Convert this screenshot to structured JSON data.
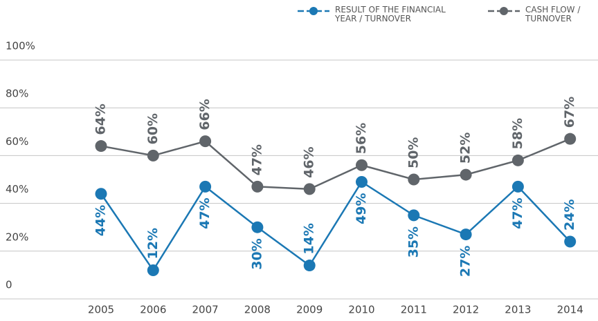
{
  "chart_data": {
    "type": "line",
    "categories": [
      "2005",
      "2006",
      "2007",
      "2008",
      "2009",
      "2010",
      "2011",
      "2012",
      "2013",
      "2014"
    ],
    "series": [
      {
        "name": "RESULT OF THE FINANCIAL YEAR / TURNOVER",
        "color": "#1b78b4",
        "values": [
          44,
          12,
          47,
          30,
          14,
          49,
          35,
          27,
          47,
          24
        ],
        "value_labels": [
          "44%",
          "12%",
          "47%",
          "30%",
          "14%",
          "49%",
          "35%",
          "27%",
          "47%",
          "24%"
        ]
      },
      {
        "name": "CASH FLOW / TURNOVER",
        "color": "#60656a",
        "values": [
          64,
          60,
          66,
          47,
          46,
          56,
          50,
          52,
          58,
          67
        ],
        "value_labels": [
          "64%",
          "60%",
          "66%",
          "47%",
          "46%",
          "56%",
          "50%",
          "52%",
          "58%",
          "67%"
        ]
      }
    ],
    "ylim": [
      0,
      100
    ],
    "yticks": [
      0,
      {
        "value": 20,
        "label": "20%"
      },
      {
        "value": 40,
        "label": "40%"
      },
      {
        "value": 60,
        "label": "60%"
      },
      {
        "value": 80,
        "label": "80%"
      },
      {
        "value": 100,
        "label": "100%"
      }
    ],
    "grid": true,
    "legend": "top-right"
  }
}
